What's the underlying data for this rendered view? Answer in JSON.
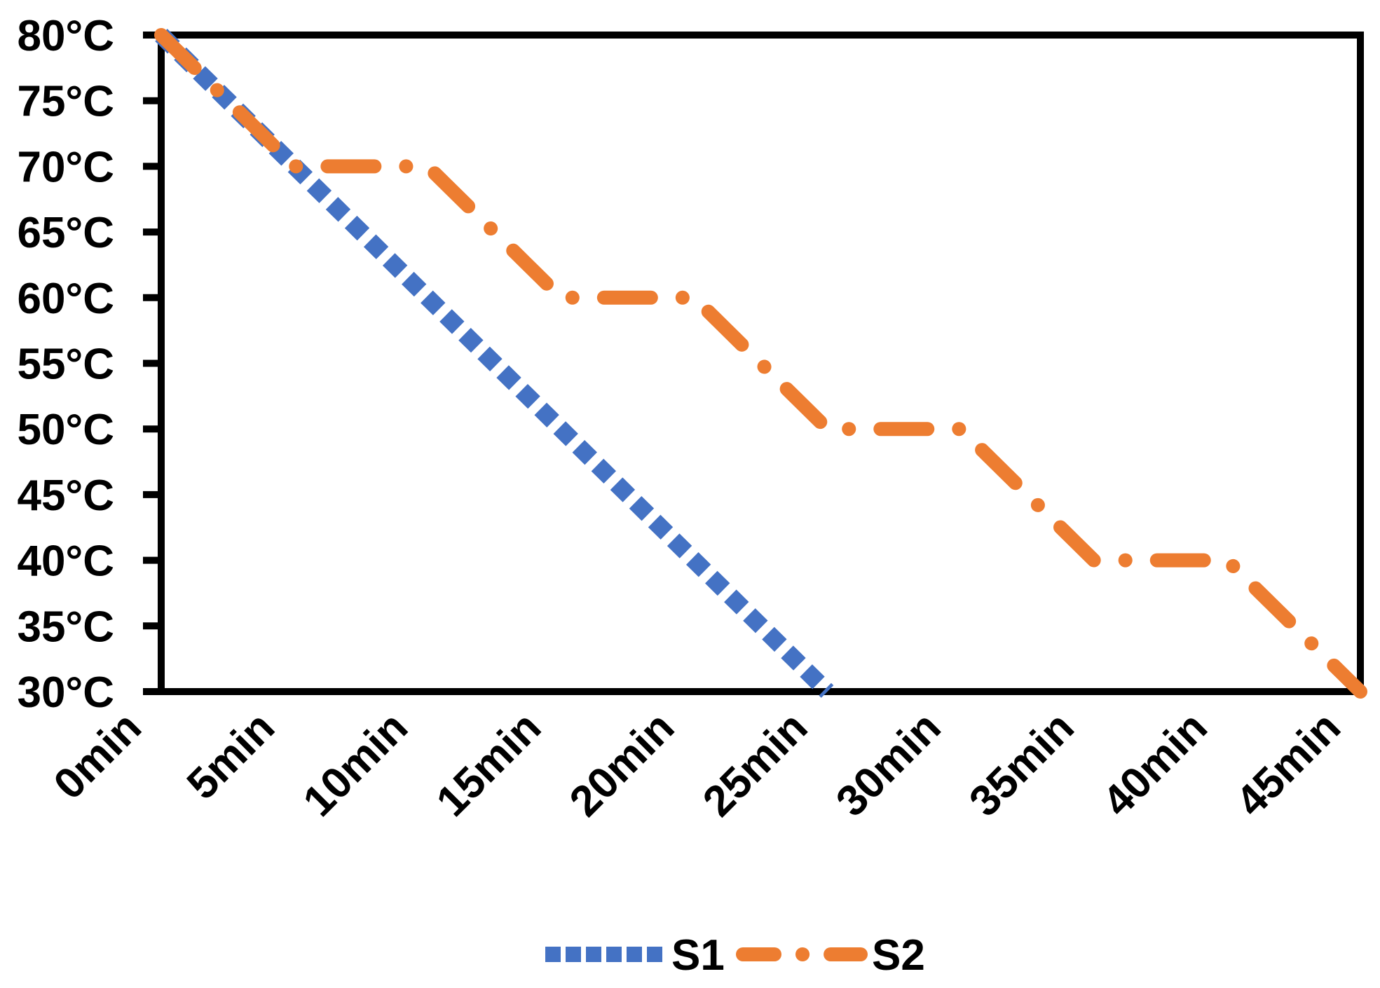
{
  "chart_data": {
    "type": "line",
    "title": "",
    "xlabel": "",
    "ylabel": "",
    "x_unit": "min",
    "y_unit": "°C",
    "xlim": [
      0,
      45
    ],
    "ylim": [
      30,
      80
    ],
    "x_ticks": [
      0,
      5,
      10,
      15,
      20,
      25,
      30,
      35,
      40,
      45
    ],
    "x_tick_labels": [
      "0min",
      "5min",
      "10min",
      "15min",
      "20min",
      "25min",
      "30min",
      "35min",
      "40min",
      "45min"
    ],
    "y_ticks": [
      80,
      75,
      70,
      65,
      60,
      55,
      50,
      45,
      40,
      35,
      30
    ],
    "y_tick_labels": [
      "80°C",
      "75°C",
      "70°C",
      "65°C",
      "60°C",
      "55°C",
      "50°C",
      "45°C",
      "40°C",
      "35°C",
      "30°C"
    ],
    "grid": false,
    "plot_background": "#FFFFFF",
    "axis_color": "#000000",
    "legend_position": "bottom-center",
    "series": [
      {
        "name": "S1",
        "color": "#4472C4",
        "line_style": "square-dot",
        "points_min_degC": [
          [
            0,
            80
          ],
          [
            5,
            70
          ],
          [
            10,
            60
          ],
          [
            15,
            50
          ],
          [
            20,
            40
          ],
          [
            25,
            30
          ]
        ]
      },
      {
        "name": "S2",
        "color": "#ED7D31",
        "line_style": "dash-dot",
        "points_min_degC": [
          [
            0,
            80
          ],
          [
            5,
            70
          ],
          [
            10,
            70
          ],
          [
            15,
            60
          ],
          [
            20,
            60
          ],
          [
            25,
            50
          ],
          [
            30,
            50
          ],
          [
            35,
            40
          ],
          [
            40,
            40
          ],
          [
            45,
            30
          ]
        ]
      }
    ]
  }
}
